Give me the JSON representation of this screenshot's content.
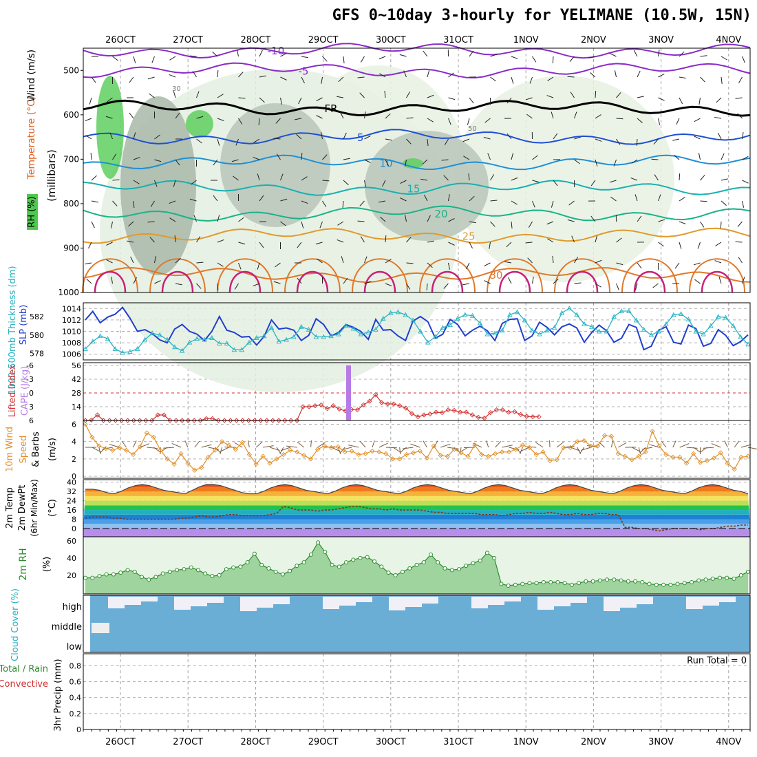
{
  "title": "GFS 0~10day 3-hourly for YELIMANE (10.5W, 15N)",
  "dates": [
    "26OCT",
    "27OCT",
    "28OCT",
    "29OCT",
    "30OCT",
    "31OCT",
    "1NOV",
    "2NOV",
    "3NOV",
    "4NOV"
  ],
  "colors": {
    "rh_fill": "#d9ead3",
    "rh_mid": "#8fae8f",
    "rh_high": "#4ec94e",
    "slp": "#1f3fcf",
    "thickness": "#27b3c2",
    "lifted": "#d23232",
    "cape": "#b77be8",
    "wind": "#e0902a",
    "rh2m": "#2e8b2e",
    "cloud": "#6aaed6",
    "temp_warm": "#e65c1a"
  },
  "chart_data": [
    {
      "type": "heatmap",
      "panel": "upper-air",
      "ylabels": {
        "wind": "Wind (m/s)",
        "temperature": "Temperature (°C)",
        "rh": "RH (%)",
        "units": "(millibars)"
      },
      "y_ticks": [
        "500",
        "600",
        "700",
        "800",
        "900",
        "1000"
      ],
      "ylim": [
        1000,
        450
      ],
      "isotherms": [
        {
          "label": "-10",
          "level_mb": 455
        },
        {
          "label": "-5",
          "level_mb": 500
        },
        {
          "label": "FR",
          "level_mb": 585
        },
        {
          "label": "-5",
          "level_mb": 650
        },
        {
          "label": "10",
          "level_mb": 708
        },
        {
          "label": "15",
          "level_mb": 765
        },
        {
          "label": "20",
          "level_mb": 822
        },
        {
          "label": "25",
          "level_mb": 872
        },
        {
          "label": "30",
          "level_mb": 960
        }
      ],
      "rh_labels": [
        "30",
        "50"
      ]
    },
    {
      "type": "line",
      "panel": "slp-thickness",
      "ylabel_left": "1000-500mb Thickness (dm)",
      "ylabel_right": "SLP (mb)",
      "y_ticks_left": [
        "578",
        "580",
        "582"
      ],
      "y_ticks_right": [
        "1006",
        "1008",
        "1010",
        "1012",
        "1014"
      ],
      "ylim_slp": [
        1005,
        1015
      ],
      "series": [
        {
          "name": "SLP (mb)",
          "values": [
            1012,
            1013.5,
            1011.5,
            1012.5,
            1013,
            1014.2,
            1012.3,
            1010,
            1010.3,
            1009.6,
            1008.5,
            1008,
            1010.4,
            1011.2,
            1010,
            1009.5,
            1008.4,
            1010,
            1012.6,
            1010.2,
            1009.8,
            1009,
            1009.1,
            1007.6,
            1009.1,
            1012,
            1010.4,
            1010.6,
            1010.2,
            1008.4,
            1009.3,
            1012.2,
            1011.2,
            1009.2,
            1009.8,
            1011.2,
            1010.7,
            1010,
            1008.6,
            1012.1,
            1010.2,
            1010.3,
            1009.2,
            1008.4,
            1011.8,
            1012.6,
            1011.7,
            1008.8,
            1009.5,
            1012.1,
            1011.2,
            1009.2,
            1010.2,
            1010.9,
            1010.1,
            1008.4,
            1011.4,
            1012.1,
            1012.2,
            1008.4,
            1009.2,
            1011.6,
            1010.7,
            1009.4,
            1010.8,
            1011.3,
            1010.6,
            1008.1,
            1009.8,
            1011.1,
            1010.1,
            1008.1,
            1008.8,
            1011.2,
            1010.7,
            1006.8,
            1007.4,
            1010.2,
            1010.8,
            1008.1,
            1007.8,
            1011.1,
            1010.5,
            1007.4,
            1007.9,
            1010.3,
            1009.3,
            1007.5,
            1008.2,
            1009.4
          ]
        },
        {
          "name": "Thickness (dm)",
          "values": [
            578.5,
            579.3,
            579.9,
            579.6,
            578.5,
            578.1,
            578.2,
            578.5,
            579.5,
            580.2,
            580,
            579.5,
            578.7,
            578.3,
            579.2,
            579.6,
            579.5,
            579.7,
            579.1,
            579.1,
            578.4,
            578.4,
            579.2,
            579.7,
            579.9,
            580.8,
            579.3,
            579.5,
            579.8,
            580.9,
            580.6,
            579.8,
            579.8,
            579.9,
            580.1,
            581,
            580.7,
            580.1,
            580.3,
            580.6,
            581.8,
            582.4,
            582.5,
            582.2,
            581.6,
            580.4,
            579.2,
            579.8,
            580.8,
            581.1,
            581.8,
            582.2,
            582.1,
            581.3,
            580.1,
            580.2,
            580.5,
            582.2,
            582.5,
            581.6,
            580.5,
            580.1,
            580.5,
            580.8,
            582.4,
            582.9,
            582.2,
            581.2,
            580.9,
            580.4,
            580.4,
            582,
            582.6,
            582.6,
            581.6,
            580.6,
            580,
            580.4,
            581.2,
            582.2,
            582.3,
            581.7,
            580.4,
            580.1,
            581,
            582,
            581.9,
            581,
            579.8,
            579
          ]
        }
      ]
    },
    {
      "type": "line",
      "panel": "lifted-cape",
      "ylabel_left": "Lifted Index",
      "ylabel_right": "CAPE (J/kg)",
      "y_ticks_left": [
        "-6",
        "-3",
        "0",
        "3",
        "6"
      ],
      "y_ticks_right": [
        "14",
        "28",
        "42",
        "56"
      ],
      "ylim_li": [
        6,
        -6
      ],
      "series": [
        {
          "name": "Lifted Index",
          "values": [
            6,
            5.9,
            4.8,
            6,
            6,
            6,
            6,
            6,
            6,
            6,
            6,
            6,
            4.8,
            4.8,
            6,
            6,
            6,
            6,
            6,
            6,
            5.6,
            5.6,
            6,
            6,
            6,
            6,
            6,
            6,
            6,
            6,
            6,
            6,
            6,
            6,
            6,
            6,
            3,
            3,
            2.8,
            2.6,
            3.4,
            2.8,
            3.5,
            3.9,
            3.6,
            3.7,
            2.6,
            1.8,
            0.4,
            2.1,
            2.4,
            2.4,
            2.8,
            3.3,
            4.5,
            5.2,
            4.8,
            4.6,
            4.2,
            4.3,
            3.7,
            3.8,
            4.2,
            4.2,
            4.8,
            5.3,
            5.5,
            4.3,
            3.7,
            3.7,
            4.2,
            4.1,
            4.7,
            5.1,
            5.2,
            5.2
          ]
        },
        {
          "name": "CAPE (J/kg)",
          "values": [
            56
          ]
        }
      ]
    },
    {
      "type": "line",
      "panel": "wind10m",
      "ylabel": "10m Wind Speed & Barbs (m/s)",
      "y_ticks": [
        "0",
        "2",
        "4",
        "6"
      ],
      "ylim": [
        0,
        6.2
      ],
      "series": [
        {
          "name": "10m Wind Speed",
          "values": [
            6,
            4.5,
            3.5,
            3.2,
            3,
            3.3,
            3,
            2.5,
            3.4,
            5,
            4.5,
            3,
            2,
            1.4,
            2.6,
            1.5,
            0.7,
            1,
            2.2,
            3,
            4,
            3.6,
            3.1,
            3.9,
            2.5,
            1.4,
            2.3,
            1.5,
            2,
            2.5,
            3,
            2.8,
            2.4,
            2,
            3.1,
            3.5,
            3.3,
            3.4,
            2.8,
            2.9,
            2.5,
            2.6,
            2.9,
            2.8,
            2.6,
            2,
            2,
            2.5,
            2.7,
            2.9,
            2.1,
            3.5,
            2.4,
            2.3,
            3.1,
            2.7,
            2.3,
            3.6,
            2.5,
            2.3,
            2.6,
            2.8,
            2.8,
            3.1,
            3.6,
            3.3,
            2.5,
            2.8,
            1.8,
            1.9,
            3.3,
            3.3,
            4,
            4.1,
            3.5,
            3.5,
            4.7,
            4.6,
            2.6,
            2.3,
            1.9,
            2.3,
            2.8,
            5.2,
            3.5,
            2.5,
            2.2,
            2.2,
            1.5,
            2.6,
            1.6,
            1.8,
            2.1,
            2.7,
            1.5,
            0.8,
            2.2,
            2.3
          ]
        }
      ]
    },
    {
      "type": "area",
      "panel": "temp2m",
      "ylabel": "2m Temp 2m DewPt (6hr Min/Max) (°C)",
      "y_ticks": [
        "0",
        "8",
        "16",
        "24",
        "32",
        "40"
      ],
      "ylim": [
        -2,
        41
      ],
      "series": [
        {
          "name": "Temperature",
          "values": [
            34,
            34,
            33,
            31,
            30,
            32,
            35,
            37,
            38,
            37,
            35,
            33,
            32,
            31,
            30,
            33,
            36,
            38,
            38,
            37,
            35,
            33,
            31,
            30,
            30,
            32,
            35,
            37,
            38,
            37,
            35,
            33,
            32,
            31,
            30,
            32,
            35,
            37,
            38,
            37,
            35,
            33,
            32,
            31,
            30,
            32,
            35,
            37,
            38,
            37,
            35,
            33,
            32,
            31,
            30,
            32,
            35,
            37,
            38,
            37,
            35,
            33,
            32,
            31,
            30,
            32,
            35,
            37,
            38,
            37,
            35,
            33,
            32,
            31,
            30,
            32,
            35,
            37,
            38,
            37,
            35,
            33,
            32,
            31,
            30,
            32,
            35,
            37,
            38,
            37,
            35,
            33,
            32,
            30
          ]
        },
        {
          "name": "Dew Point",
          "values": [
            9,
            10,
            10,
            10,
            9,
            9,
            8,
            8,
            8,
            8,
            8,
            8,
            8,
            8,
            9,
            9,
            10,
            11,
            10,
            10,
            11,
            12,
            12,
            11,
            11,
            11,
            11,
            12,
            13,
            19,
            18,
            16,
            16,
            16,
            15,
            16,
            16,
            17,
            18,
            19,
            19,
            18,
            17,
            17,
            16,
            17,
            16,
            16,
            16,
            16,
            15,
            14,
            14,
            13,
            13,
            13,
            13,
            13,
            12,
            12,
            12,
            11,
            12,
            13,
            13,
            14,
            13,
            13,
            14,
            13,
            12,
            12,
            13,
            12,
            12,
            13,
            13,
            12,
            12,
            1,
            1,
            0,
            0,
            -1,
            -2,
            -1,
            0,
            0,
            0,
            0,
            -1,
            0,
            0,
            1,
            2,
            2,
            3,
            3
          ]
        }
      ]
    },
    {
      "type": "area",
      "panel": "rh2m",
      "ylabel": "2m RH (%)",
      "y_ticks": [
        "20",
        "40",
        "60"
      ],
      "ylim": [
        0,
        63
      ],
      "series": [
        {
          "name": "2m RH",
          "values": [
            17,
            17,
            19,
            21,
            21,
            23,
            26,
            24,
            18,
            15,
            18,
            22,
            24,
            26,
            27,
            29,
            26,
            22,
            19,
            20,
            27,
            29,
            30,
            35,
            45,
            32,
            28,
            24,
            21,
            25,
            31,
            35,
            44,
            58,
            47,
            32,
            30,
            35,
            38,
            40,
            41,
            36,
            30,
            23,
            20,
            24,
            28,
            32,
            35,
            44,
            35,
            28,
            26,
            27,
            31,
            34,
            37,
            46,
            40,
            10,
            8,
            9,
            10,
            11,
            11,
            12,
            12,
            12,
            11,
            9,
            11,
            13,
            13,
            14,
            15,
            15,
            14,
            13,
            13,
            12,
            10,
            9,
            9,
            9,
            10,
            11,
            12,
            14,
            15,
            16,
            17,
            17,
            16,
            20,
            24
          ]
        }
      ]
    },
    {
      "type": "heatmap",
      "panel": "cloud",
      "ylabel": "Cloud Cover (%)",
      "y_ticks": [
        "high",
        "middle",
        "low"
      ]
    },
    {
      "type": "bar",
      "panel": "precip",
      "ylabel_left": "Total / Rain",
      "ylabel_left2": "Convective",
      "ylabel_right": "3hr Precip (mm)",
      "y_ticks": [
        "0",
        "0.2",
        "0.4",
        "0.6",
        "0.8"
      ],
      "ylim": [
        0,
        0.95
      ],
      "values": [],
      "run_total": "Run Total = 0"
    }
  ]
}
